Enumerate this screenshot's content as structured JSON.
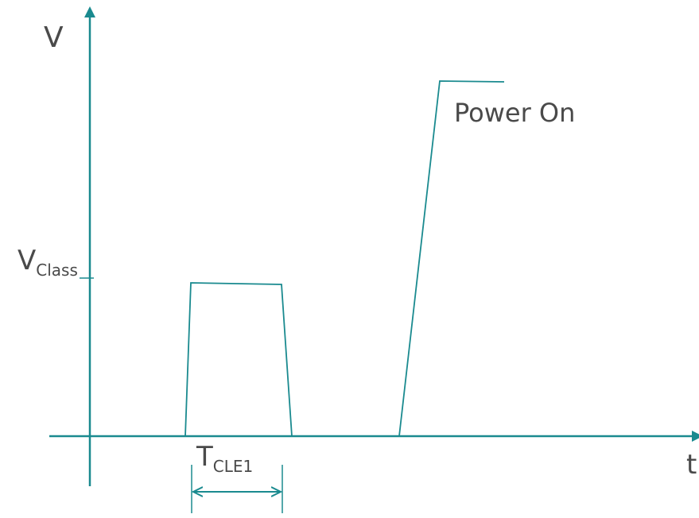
{
  "axes": {
    "y_label": "V",
    "x_label": "t"
  },
  "labels": {
    "vclass_main": "V",
    "vclass_sub": "Class",
    "tcle1_main": "T",
    "tcle1_sub": "CLE1",
    "power_on": "Power On"
  },
  "colors": {
    "axis": "#1a8a8f",
    "signal": "#1a8a8f",
    "text": "#4a4a4a"
  }
}
